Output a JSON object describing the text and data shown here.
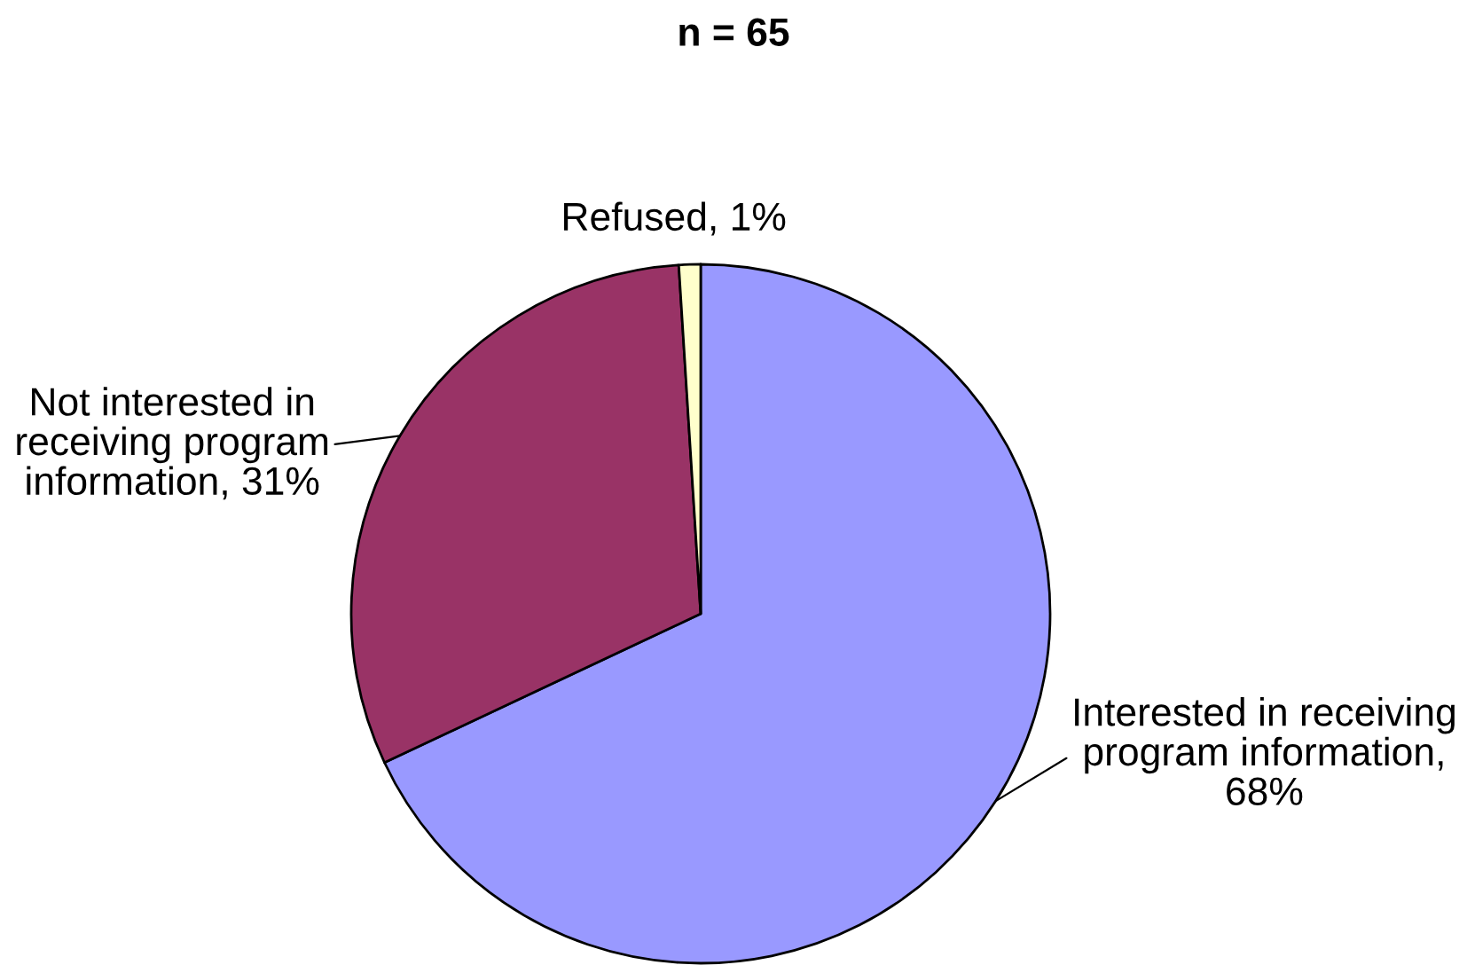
{
  "chart_data": {
    "type": "pie",
    "title": "n = 65",
    "categories": [
      "Interested in receiving program information, 68%",
      "Not interested in receiving program information, 31%",
      "Refused, 1%"
    ],
    "values": [
      68,
      31,
      1
    ],
    "colors": [
      "#9999ff",
      "#993366",
      "#ffffcc"
    ]
  }
}
